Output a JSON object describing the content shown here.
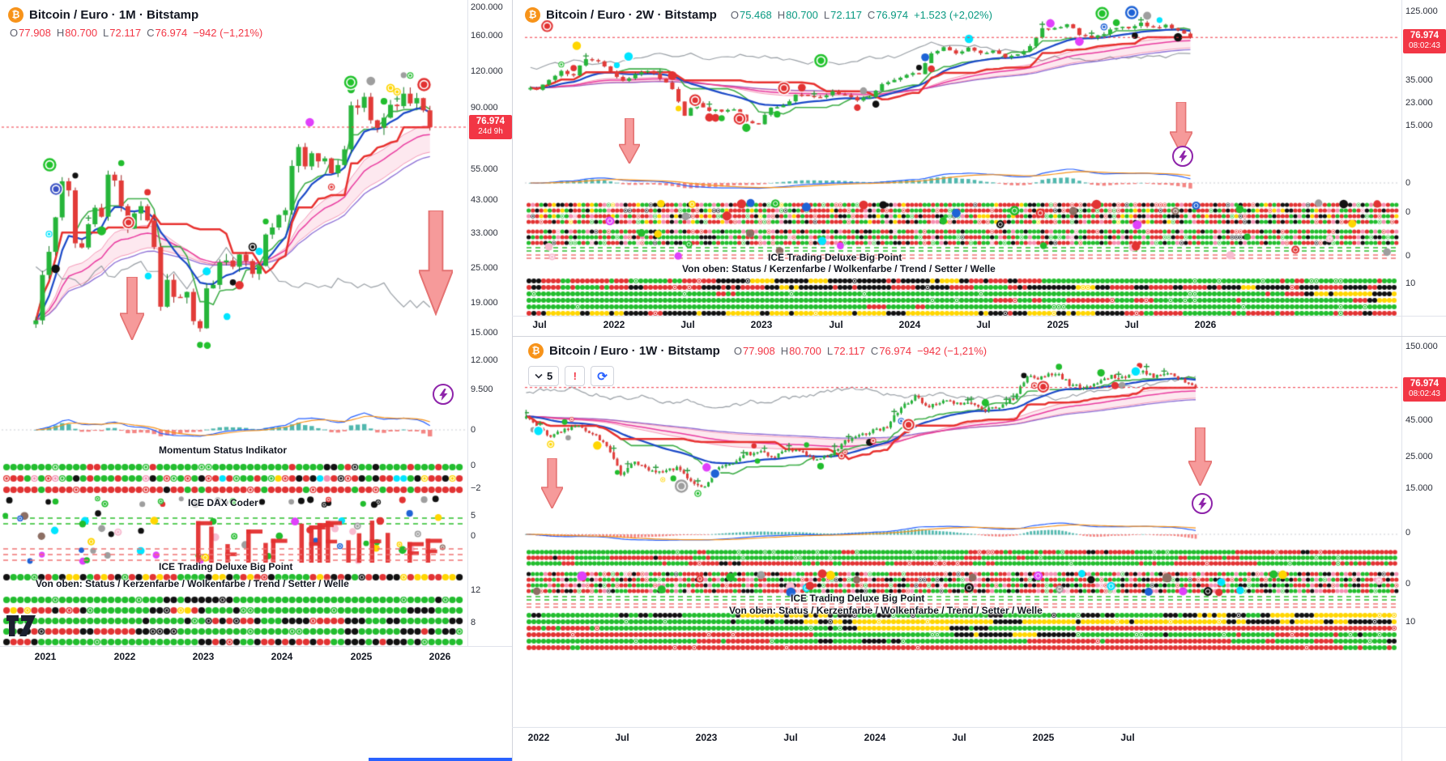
{
  "colors": {
    "up": "#089981",
    "down": "#f23645",
    "accent_blue": "#2962ff",
    "candle_up": "#26b53a",
    "candle_down": "#e23b38",
    "price_tag_bg": "#f23645",
    "arrow_fill": "#f48888",
    "bitcoin_orange": "#f7931a",
    "lightning_purple": "#8e24aa"
  },
  "icons": {
    "bitcoin_glyph": "₿",
    "warning_glyph": "!",
    "refresh_glyph": "⟳"
  },
  "panels": [
    {
      "header": {
        "title_text": "Bitcoin / Euro · 1M · Bitstamp"
      },
      "ohlc": {
        "o_label": "O",
        "o": "77.908",
        "h_label": "H",
        "h": "80.700",
        "l_label": "L",
        "l": "72.117",
        "c_label": "C",
        "c": "76.974",
        "change": "−942 (−1,21%)",
        "direction": "down"
      },
      "price_tag": {
        "price": "76.974",
        "sub": "24d 9h"
      },
      "price_axis": [
        "200.000",
        "160.000",
        "120.000",
        "90.000",
        "55.000",
        "43.000",
        "33.000",
        "25.000",
        "19.000",
        "15.000",
        "12.000",
        "9.500"
      ],
      "indicator_ticks": [
        "0",
        "0",
        "−2",
        "5",
        "0",
        "12",
        "8"
      ],
      "time_axis": [
        "2021",
        "2022",
        "2023",
        "2024",
        "2025",
        "2026"
      ],
      "labels": {
        "momentum": "Momentum Status Indikator",
        "dax": "ICE DAX Coder",
        "bigpoint": "ICE Trading Deluxe Big Point",
        "legend": "Von oben: Status / Kerzenfarbe / Wolkenfarbe / Trend / Setter / Welle"
      }
    },
    {
      "header": {
        "title_text": "Bitcoin / Euro · 2W · Bitstamp"
      },
      "ohlc": {
        "o_label": "O",
        "o": "75.468",
        "h_label": "H",
        "h": "80.700",
        "l_label": "L",
        "l": "72.117",
        "c_label": "C",
        "c": "76.974",
        "change": "+1.523 (+2,02%)",
        "direction": "up"
      },
      "price_tag": {
        "price": "76.974",
        "sub": "08:02:43"
      },
      "price_axis": [
        "125.000",
        "35.000",
        "23.000",
        "15.000"
      ],
      "indicator_ticks": [
        "0",
        "0",
        "0",
        "10"
      ],
      "time_axis": [
        "Jul",
        "2022",
        "Jul",
        "2023",
        "Jul",
        "2024",
        "Jul",
        "2025",
        "Jul",
        "2026"
      ],
      "labels": {
        "bigpoint": "ICE Trading Deluxe Big Point",
        "legend": "Von oben: Status / Kerzenfarbe / Wolkenfarbe / Trend / Setter / Welle"
      }
    },
    {
      "header": {
        "title_text": "Bitcoin / Euro · 1W · Bitstamp"
      },
      "ohlc": {
        "o_label": "O",
        "o": "77.908",
        "h_label": "H",
        "h": "80.700",
        "l_label": "L",
        "l": "72.117",
        "c_label": "C",
        "c": "76.974",
        "change": "−942 (−1,21%)",
        "direction": "down"
      },
      "toolbar": {
        "interval": "5",
        "warning": "!",
        "refresh": "⟳"
      },
      "price_tag": {
        "price": "76.974",
        "sub": "08:02:43"
      },
      "price_axis": [
        "150.000",
        "45.000",
        "25.000",
        "15.000"
      ],
      "indicator_ticks": [
        "0",
        "0",
        "10"
      ],
      "time_axis": [
        "2022",
        "Jul",
        "2023",
        "Jul",
        "2024",
        "Jul",
        "2025",
        "Jul"
      ],
      "labels": {
        "bigpoint": "ICE Trading Deluxe Big Point",
        "legend": "Von oben: Status / Kerzenfarbe / Wolkenfarbe / Trend / Setter / Welle"
      }
    }
  ],
  "chart_data": [
    {
      "type": "candlestick",
      "title": "Bitcoin / Euro · 1M · Bitstamp",
      "symbol": "BTC/EUR",
      "timeframe": "1M",
      "exchange": "Bitstamp",
      "yscale": "log",
      "current_price_thousand_eur": 76.974,
      "last_candle": {
        "open": 77.908,
        "high": 80.7,
        "low": 72.117,
        "close": 76.974,
        "change_abs": -942,
        "change_pct": -1.21
      },
      "y_ticks_thousand_eur": [
        200,
        160,
        120,
        90,
        55,
        43,
        33,
        25,
        19,
        15,
        12,
        9.5
      ],
      "x_ticks": [
        "2021",
        "2022",
        "2023",
        "2024",
        "2025",
        "2026"
      ],
      "series_start_year": 2020.8333,
      "series_step_years": 0.0833333,
      "monthly_closes_thousand_eur": [
        16.5,
        23.7,
        28.5,
        37.5,
        50,
        46.5,
        30.5,
        29.5,
        35.5,
        40.5,
        37.7,
        52.7,
        50.3,
        41,
        34.3,
        38.7,
        41,
        36.6,
        29.6,
        18.4,
        22.8,
        19.9,
        19.8,
        20.7,
        16.4,
        15.5,
        21.3,
        21.9,
        26.2,
        26.6,
        25.3,
        27.9,
        26.5,
        23.9,
        25.5,
        32.7,
        34.6,
        38.2,
        39.7,
        56.5,
        65.7,
        56.3,
        62.5,
        58.6,
        60,
        53.3,
        56.9,
        64.5,
        91.5,
        89.8,
        98,
        81.3,
        76.5,
        83,
        92,
        91,
        100.5,
        93,
        97,
        88,
        76.974
      ],
      "overlays": [
        "Ichimoku-style cloud and moving averages",
        "signal dots",
        "gray overlay line",
        "red dotted current-price line",
        "large pink down arrows"
      ],
      "sub_panels": [
        "MACD-style histogram",
        "Momentum Status Indikator",
        "ICE DAX Coder",
        "ICE Trading Deluxe Big Point"
      ]
    },
    {
      "type": "candlestick",
      "title": "Bitcoin / Euro · 2W · Bitstamp",
      "symbol": "BTC/EUR",
      "timeframe": "2W",
      "exchange": "Bitstamp",
      "yscale": "log",
      "current_price_thousand_eur": 76.974,
      "last_candle": {
        "open": 75.468,
        "high": 80.7,
        "low": 72.117,
        "close": 76.974,
        "change_abs": 1523,
        "change_pct": 2.02
      },
      "y_ticks_thousand_eur": [
        125,
        35,
        23,
        15
      ],
      "x_ticks": [
        "Jul",
        "2022",
        "Jul",
        "2023",
        "Jul",
        "2024",
        "Jul",
        "2025",
        "Jul",
        "2026"
      ],
      "series_note": "Same BTC/EUR price history as chart 0, rendered at 2-week resolution",
      "sub_panels": [
        "MACD-style histogram",
        "dot-matrix status bands",
        "ICE Trading Deluxe Big Point"
      ]
    },
    {
      "type": "candlestick",
      "title": "Bitcoin / Euro · 1W · Bitstamp",
      "symbol": "BTC/EUR",
      "timeframe": "1W",
      "exchange": "Bitstamp",
      "yscale": "log",
      "current_price_thousand_eur": 76.974,
      "last_candle": {
        "open": 77.908,
        "high": 80.7,
        "low": 72.117,
        "close": 76.974,
        "change_abs": -942,
        "change_pct": -1.21
      },
      "y_ticks_thousand_eur": [
        150,
        45,
        25,
        15
      ],
      "x_ticks": [
        "2022",
        "Jul",
        "2023",
        "Jul",
        "2024",
        "Jul",
        "2025",
        "Jul"
      ],
      "series_note": "Same BTC/EUR price history as chart 0, rendered at 1-week resolution",
      "sub_panels": [
        "MACD-style histogram",
        "dot-matrix status bands",
        "ICE Trading Deluxe Big Point"
      ]
    }
  ]
}
